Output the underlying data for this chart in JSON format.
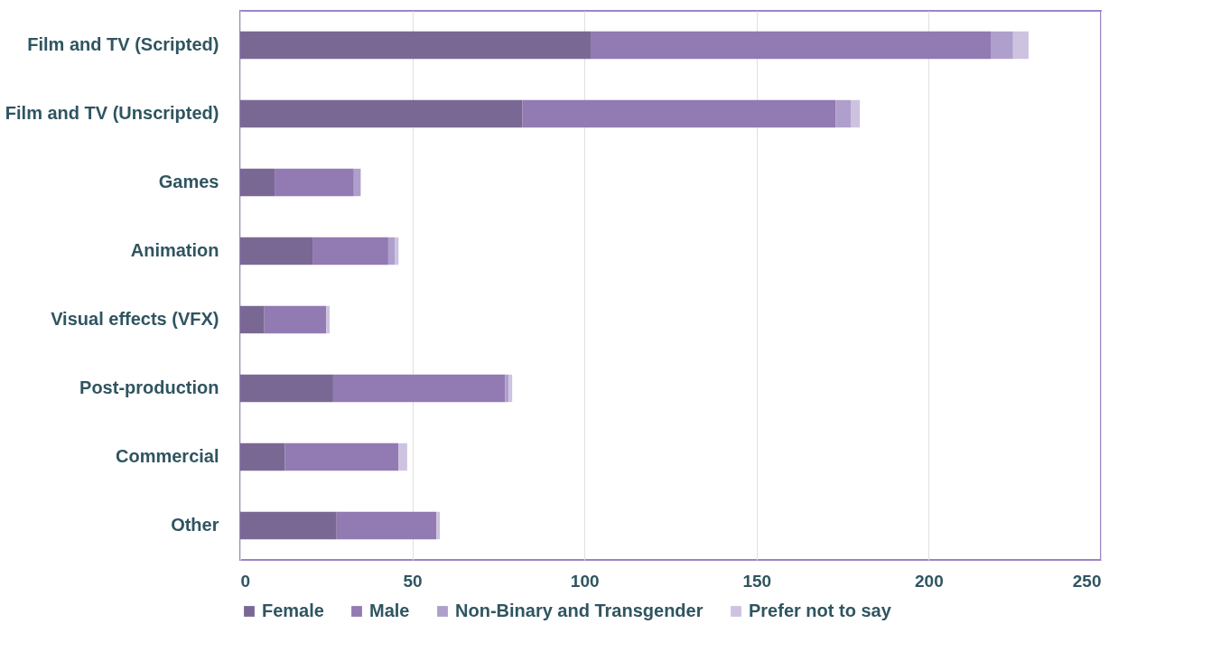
{
  "chart_data": {
    "type": "bar",
    "orientation": "horizontal",
    "stacked": true,
    "categories": [
      "Film and TV (Scripted)",
      "Film and TV (Unscripted)",
      "Games",
      "Animation",
      "Visual effects (VFX)",
      "Post-production",
      "Commercial",
      "Other"
    ],
    "series": [
      {
        "name": "Female",
        "color": "#7a6894",
        "values": [
          102,
          82,
          10,
          21,
          7,
          27,
          13,
          28
        ]
      },
      {
        "name": "Male",
        "color": "#927ab2",
        "values": [
          116,
          91,
          23,
          22,
          18,
          50,
          33,
          29
        ]
      },
      {
        "name": "Non-Binary and Transgender",
        "color": "#ae9fcc",
        "values": [
          6.5,
          4.5,
          2,
          2,
          0,
          1,
          0,
          0
        ]
      },
      {
        "name": "Prefer not to say",
        "color": "#cdc3e0",
        "values": [
          4.5,
          2.5,
          0,
          1,
          1,
          1,
          2.5,
          1
        ]
      }
    ],
    "xlim": [
      0,
      250
    ],
    "xticks": [
      0,
      50,
      100,
      150,
      200,
      250
    ],
    "grid": "x",
    "legend": "bottom"
  }
}
